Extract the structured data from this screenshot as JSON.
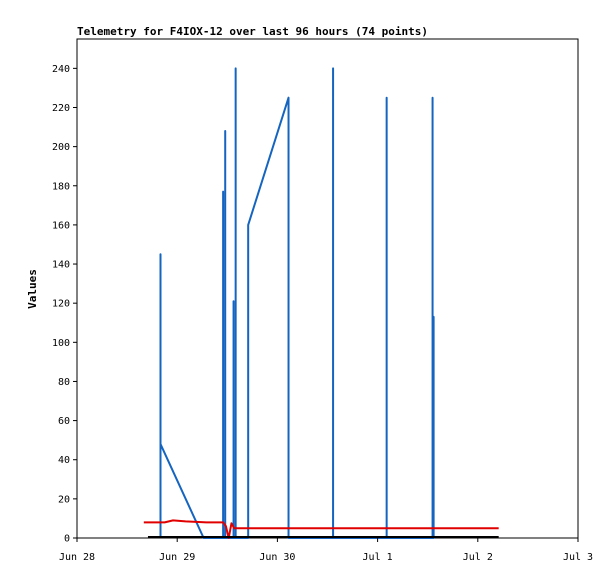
{
  "chart_data": {
    "type": "line",
    "title": "Telemetry for F4IOX-12 over last 96 hours (74 points)",
    "xlabel": "",
    "ylabel": "Values",
    "ylim": [
      0,
      255
    ],
    "y_ticks": [
      0,
      20,
      40,
      60,
      80,
      100,
      120,
      140,
      160,
      180,
      200,
      220,
      240
    ],
    "xlim": [
      "2024-06-28T00:00",
      "2024-07-03T00:00"
    ],
    "x_ticks": [
      {
        "t": "2024-06-28T00:00",
        "label": "Jun 28"
      },
      {
        "t": "2024-06-29T00:00",
        "label": "Jun 29"
      },
      {
        "t": "2024-06-30T00:00",
        "label": "Jun 30"
      },
      {
        "t": "2024-07-01T00:00",
        "label": "Jul 1"
      },
      {
        "t": "2024-07-02T00:00",
        "label": "Jul 2"
      },
      {
        "t": "2024-07-03T00:00",
        "label": "Jul 3"
      }
    ],
    "grid": false,
    "series": [
      {
        "color": "#1565c0",
        "points": [
          [
            "2024-06-28T20:00",
            0
          ],
          [
            "2024-06-28T20:00",
            145
          ],
          [
            "2024-06-28T20:00",
            48
          ],
          [
            "2024-06-29T06:20",
            0
          ],
          [
            "2024-06-29T11:00",
            0
          ],
          [
            "2024-06-29T11:00",
            177
          ],
          [
            "2024-06-29T11:00",
            0
          ],
          [
            "2024-06-29T11:30",
            0
          ],
          [
            "2024-06-29T11:30",
            208
          ],
          [
            "2024-06-29T11:30",
            0
          ],
          [
            "2024-06-29T13:30",
            0
          ],
          [
            "2024-06-29T13:30",
            121
          ],
          [
            "2024-06-29T13:30",
            0
          ],
          [
            "2024-06-29T14:00",
            0
          ],
          [
            "2024-06-29T14:00",
            240
          ],
          [
            "2024-06-29T14:00",
            0
          ],
          [
            "2024-06-29T17:00",
            0
          ],
          [
            "2024-06-29T17:00",
            160
          ],
          [
            "2024-06-30T02:40",
            225
          ],
          [
            "2024-06-30T02:40",
            0
          ],
          [
            "2024-06-30T13:20",
            0
          ],
          [
            "2024-06-30T13:20",
            240
          ],
          [
            "2024-06-30T13:20",
            0
          ],
          [
            "2024-07-01T02:10",
            0
          ],
          [
            "2024-07-01T02:10",
            225
          ],
          [
            "2024-07-01T02:10",
            0
          ],
          [
            "2024-07-01T13:10",
            0
          ],
          [
            "2024-07-01T13:10",
            225
          ],
          [
            "2024-07-01T13:10",
            0
          ],
          [
            "2024-07-01T13:25",
            0
          ],
          [
            "2024-07-01T13:25",
            113
          ],
          [
            "2024-07-01T13:25",
            0
          ]
        ]
      },
      {
        "color": "#e00000",
        "points": [
          [
            "2024-06-28T16:00",
            8
          ],
          [
            "2024-06-28T21:00",
            8
          ],
          [
            "2024-06-28T23:00",
            9
          ],
          [
            "2024-06-29T02:00",
            8.5
          ],
          [
            "2024-06-29T07:00",
            8
          ],
          [
            "2024-06-29T11:00",
            8
          ],
          [
            "2024-06-29T11:40",
            6
          ],
          [
            "2024-06-29T12:20",
            0
          ],
          [
            "2024-06-29T13:00",
            7.5
          ],
          [
            "2024-06-29T13:40",
            5
          ],
          [
            "2024-06-29T18:00",
            5
          ],
          [
            "2024-07-02T05:00",
            5
          ]
        ]
      },
      {
        "color": "#000000",
        "points": [
          [
            "2024-06-28T17:00",
            0.5
          ],
          [
            "2024-07-02T05:00",
            0.5
          ]
        ]
      }
    ]
  }
}
